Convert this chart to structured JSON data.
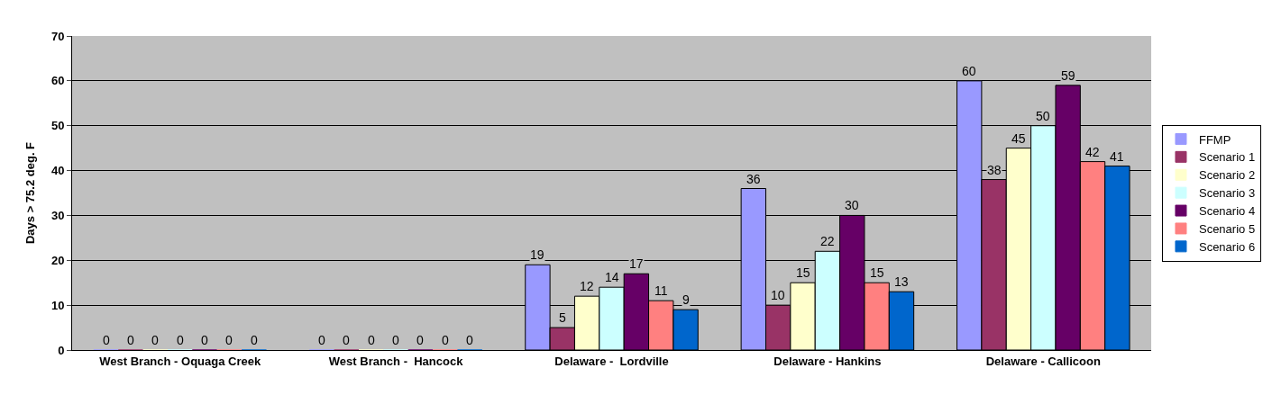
{
  "chart_data": {
    "type": "bar",
    "ylabel": "Days > 75.2 deg. F",
    "categories": [
      "West Branch - Oquaga Creek",
      "West Branch -  Hancock",
      "Delaware -  Lordville",
      "Delaware - Hankins",
      "Delaware - Callicoon"
    ],
    "series": [
      {
        "name": "FFMP",
        "color": "#9999ff",
        "values": [
          0,
          0,
          19,
          36,
          60
        ]
      },
      {
        "name": "Scenario 1",
        "color": "#993366",
        "values": [
          0,
          0,
          5,
          10,
          38
        ]
      },
      {
        "name": "Scenario 2",
        "color": "#ffffcc",
        "values": [
          0,
          0,
          12,
          15,
          45
        ]
      },
      {
        "name": "Scenario 3",
        "color": "#ccffff",
        "values": [
          0,
          0,
          14,
          22,
          50
        ]
      },
      {
        "name": "Scenario 4",
        "color": "#660066",
        "values": [
          0,
          0,
          17,
          30,
          59
        ]
      },
      {
        "name": "Scenario 5",
        "color": "#ff8080",
        "values": [
          0,
          0,
          11,
          15,
          42
        ]
      },
      {
        "name": "Scenario 6",
        "color": "#0066cc",
        "values": [
          0,
          0,
          9,
          13,
          41
        ]
      }
    ],
    "ylim": [
      0,
      70
    ],
    "yticks": [
      0,
      10,
      20,
      30,
      40,
      50,
      60,
      70
    ],
    "grid": "y",
    "legend": "right",
    "data_labels": true
  }
}
